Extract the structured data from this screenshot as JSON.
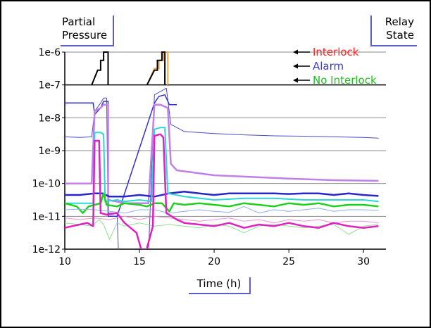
{
  "chart_data": {
    "type": "line",
    "xlabel": "Time (h)",
    "ylabel": "Partial Pressure",
    "secondary_label": "Relay State",
    "yscale": "log",
    "ylim": [
      1e-12,
      1e-06
    ],
    "xlim": [
      10,
      31.5
    ],
    "xticks": [
      "10",
      "15",
      "20",
      "25",
      "30"
    ],
    "xtick_values": [
      10,
      15,
      20,
      25,
      30
    ],
    "yticks": [
      "1e-12",
      "1e-11",
      "1e-10",
      "1e-9",
      "1e-8",
      "1e-7",
      "1e-6"
    ],
    "ytick_exponents": [
      -12,
      -11,
      -10,
      -9,
      -8,
      -7,
      -6
    ],
    "grid": "horizontal",
    "legend": [
      {
        "label": "Interlock",
        "color": "#ff2020",
        "level": 4
      },
      {
        "label": "Alarm",
        "color": "#4040d0",
        "level": 3
      },
      {
        "label": "No Interlock",
        "color": "#20c020",
        "level": 2
      }
    ],
    "relay_traces": [
      {
        "color": "#000000",
        "points": [
          [
            11.8,
            -7
          ],
          [
            12.2,
            -6.55
          ],
          [
            12.4,
            -6.55
          ],
          [
            12.4,
            -6.25
          ],
          [
            12.6,
            -6.25
          ],
          [
            12.6,
            -6
          ],
          [
            12.9,
            -6
          ],
          [
            12.9,
            -7
          ]
        ]
      },
      {
        "color": "#f0a850",
        "points": [
          [
            15.5,
            -7
          ],
          [
            16.0,
            -6.5
          ],
          [
            16.3,
            -6.5
          ],
          [
            16.3,
            -6.25
          ],
          [
            16.6,
            -6.25
          ],
          [
            16.6,
            -6
          ],
          [
            16.9,
            -6
          ],
          [
            16.9,
            -7
          ]
        ]
      },
      {
        "color": "#000000",
        "points": [
          [
            15.5,
            -7
          ],
          [
            16.0,
            -6.55
          ],
          [
            16.2,
            -6.55
          ],
          [
            16.2,
            -6.25
          ],
          [
            16.5,
            -6.25
          ],
          [
            16.5,
            -6
          ],
          [
            16.7,
            -6
          ],
          [
            16.7,
            -7
          ]
        ]
      }
    ],
    "series": [
      {
        "color": "#4a4ac8",
        "width": 1,
        "points": [
          [
            10,
            -8.58
          ],
          [
            11,
            -8.6
          ],
          [
            11.8,
            -8.58
          ],
          [
            12.0,
            -7.8
          ],
          [
            12.4,
            -7.55
          ],
          [
            12.6,
            -7.4
          ],
          [
            12.8,
            -7.4
          ],
          [
            12.9,
            -10.9
          ],
          [
            13.5,
            -10.9
          ],
          [
            13.6,
            -12.2
          ],
          [
            15.6,
            -12.2
          ],
          [
            16.0,
            -7.3
          ],
          [
            16.4,
            -7.2
          ],
          [
            16.8,
            -7.1
          ],
          [
            17.1,
            -8.2
          ],
          [
            18,
            -8.42
          ],
          [
            20,
            -8.48
          ],
          [
            22,
            -8.52
          ],
          [
            24,
            -8.55
          ],
          [
            26,
            -8.56
          ],
          [
            28,
            -8.58
          ],
          [
            30,
            -8.6
          ],
          [
            31,
            -8.62
          ]
        ]
      },
      {
        "color": "#3030d0",
        "width": 1.5,
        "points": [
          [
            10,
            -7.55
          ],
          [
            11,
            -7.55
          ],
          [
            11.9,
            -7.55
          ],
          [
            12.0,
            -7.9
          ],
          [
            12.4,
            -7.7
          ],
          [
            12.6,
            -7.5
          ],
          [
            12.9,
            -7.5
          ],
          [
            12.9,
            -11
          ],
          [
            13.5,
            -11
          ],
          [
            16.0,
            -7.55
          ],
          [
            16.3,
            -7.35
          ],
          [
            16.7,
            -7.3
          ],
          [
            17.0,
            -7.6
          ],
          [
            17.5,
            -7.6
          ]
        ]
      },
      {
        "color": "#c080e8",
        "width": 2.5,
        "points": [
          [
            10,
            -10
          ],
          [
            11,
            -10
          ],
          [
            11.8,
            -10
          ],
          [
            12.0,
            -7.8
          ],
          [
            12.4,
            -7.7
          ],
          [
            12.6,
            -7.6
          ],
          [
            12.9,
            -7.6
          ],
          [
            12.9,
            -10.5
          ],
          [
            14,
            -10.6
          ],
          [
            15.6,
            -10.6
          ],
          [
            16.0,
            -7.6
          ],
          [
            16.4,
            -7.6
          ],
          [
            16.9,
            -7.7
          ],
          [
            17.1,
            -9.4
          ],
          [
            17.5,
            -9.6
          ],
          [
            20,
            -9.75
          ],
          [
            25,
            -9.85
          ],
          [
            28,
            -9.9
          ],
          [
            31,
            -9.92
          ]
        ]
      },
      {
        "color": "#2828c8",
        "width": 2.5,
        "points": [
          [
            10,
            -10.35
          ],
          [
            11,
            -10.35
          ],
          [
            12,
            -10.3
          ],
          [
            12.5,
            -10.3
          ],
          [
            13,
            -10.4
          ],
          [
            14,
            -10.4
          ],
          [
            15,
            -10.35
          ],
          [
            16,
            -10.4
          ],
          [
            17,
            -10.3
          ],
          [
            18,
            -10.25
          ],
          [
            19,
            -10.3
          ],
          [
            20,
            -10.35
          ],
          [
            21,
            -10.3
          ],
          [
            22,
            -10.3
          ],
          [
            23,
            -10.3
          ],
          [
            24,
            -10.3
          ],
          [
            25,
            -10.32
          ],
          [
            26,
            -10.3
          ],
          [
            27,
            -10.3
          ],
          [
            28,
            -10.35
          ],
          [
            29,
            -10.3
          ],
          [
            30,
            -10.35
          ],
          [
            31,
            -10.38
          ]
        ]
      },
      {
        "color": "#28d8d8",
        "width": 2,
        "points": [
          [
            10,
            -10.6
          ],
          [
            11,
            -10.6
          ],
          [
            11.9,
            -10.6
          ],
          [
            12.0,
            -8.45
          ],
          [
            12.4,
            -8.45
          ],
          [
            12.6,
            -8.5
          ],
          [
            12.7,
            -10.55
          ],
          [
            13.5,
            -10.5
          ],
          [
            14,
            -10.55
          ],
          [
            15,
            -10.5
          ],
          [
            15.8,
            -10.55
          ],
          [
            16.0,
            -8.35
          ],
          [
            16.4,
            -8.3
          ],
          [
            16.7,
            -8.3
          ],
          [
            16.9,
            -10.3
          ],
          [
            18,
            -10.4
          ],
          [
            20,
            -10.5
          ],
          [
            22,
            -10.45
          ],
          [
            24,
            -10.45
          ],
          [
            26,
            -10.5
          ],
          [
            28,
            -10.5
          ],
          [
            30,
            -10.5
          ],
          [
            31,
            -10.55
          ]
        ]
      },
      {
        "color": "#20d020",
        "width": 2.5,
        "points": [
          [
            10,
            -10.6
          ],
          [
            10.8,
            -10.7
          ],
          [
            11.2,
            -10.9
          ],
          [
            11.6,
            -10.7
          ],
          [
            12,
            -10.65
          ],
          [
            12.4,
            -10.6
          ],
          [
            12.6,
            -10.3
          ],
          [
            12.8,
            -10.65
          ],
          [
            13.5,
            -10.7
          ],
          [
            14,
            -10.6
          ],
          [
            15,
            -10.65
          ],
          [
            15.5,
            -10.7
          ],
          [
            16,
            -10.6
          ],
          [
            16.5,
            -10.6
          ],
          [
            17,
            -10.85
          ],
          [
            17.3,
            -10.6
          ],
          [
            18,
            -10.65
          ],
          [
            19,
            -10.6
          ],
          [
            20,
            -10.65
          ],
          [
            21,
            -10.7
          ],
          [
            22,
            -10.6
          ],
          [
            23,
            -10.65
          ],
          [
            24,
            -10.7
          ],
          [
            25,
            -10.6
          ],
          [
            26,
            -10.65
          ],
          [
            27,
            -10.6
          ],
          [
            28,
            -10.7
          ],
          [
            29,
            -10.65
          ],
          [
            30,
            -10.65
          ],
          [
            31,
            -10.7
          ]
        ]
      },
      {
        "color": "#8ab0f0",
        "width": 1,
        "points": [
          [
            10,
            -10.8
          ],
          [
            11,
            -10.78
          ],
          [
            12,
            -10.8
          ],
          [
            13,
            -10.85
          ],
          [
            14,
            -10.9
          ],
          [
            15,
            -10.8
          ],
          [
            16,
            -10.8
          ],
          [
            17,
            -10.9
          ],
          [
            18,
            -10.85
          ],
          [
            19,
            -10.8
          ],
          [
            20,
            -10.85
          ],
          [
            21,
            -10.88
          ],
          [
            22,
            -10.7
          ],
          [
            23,
            -10.9
          ],
          [
            24,
            -10.8
          ],
          [
            25,
            -10.85
          ],
          [
            26,
            -10.8
          ],
          [
            27,
            -10.75
          ],
          [
            28,
            -10.85
          ],
          [
            29,
            -10.8
          ],
          [
            30,
            -10.8
          ],
          [
            31,
            -10.82
          ]
        ]
      },
      {
        "color": "#f090d8",
        "width": 1,
        "points": [
          [
            10,
            -11.05
          ],
          [
            11,
            -11.1
          ],
          [
            12,
            -11.05
          ],
          [
            13,
            -11.1
          ],
          [
            14,
            -11.0
          ],
          [
            15,
            -11.1
          ],
          [
            16,
            -11.0
          ],
          [
            17,
            -11.05
          ],
          [
            18,
            -11.1
          ],
          [
            19,
            -11.15
          ],
          [
            20,
            -11.1
          ],
          [
            21,
            -11.05
          ],
          [
            22,
            -11.15
          ],
          [
            23,
            -11.1
          ],
          [
            24,
            -11.2
          ],
          [
            25,
            -11.1
          ],
          [
            26,
            -11.15
          ],
          [
            27,
            -11.1
          ],
          [
            28,
            -11.2
          ],
          [
            29,
            -11.15
          ],
          [
            30,
            -11.15
          ],
          [
            31,
            -11.2
          ]
        ]
      },
      {
        "color": "#90e090",
        "width": 1,
        "points": [
          [
            10,
            -11.2
          ],
          [
            11,
            -11.25
          ],
          [
            11.8,
            -11.3
          ],
          [
            12.3,
            -11.1
          ],
          [
            12.6,
            -11.25
          ],
          [
            13.0,
            -11.7
          ],
          [
            13.5,
            -11.2
          ],
          [
            14,
            -11.3
          ],
          [
            15,
            -11.2
          ],
          [
            16,
            -11.3
          ],
          [
            17,
            -11.25
          ],
          [
            18,
            -11.3
          ],
          [
            19,
            -11.35
          ],
          [
            20,
            -11.25
          ],
          [
            21,
            -11.3
          ],
          [
            22,
            -11.5
          ],
          [
            23,
            -11.3
          ],
          [
            24,
            -11.25
          ],
          [
            25,
            -11.3
          ],
          [
            26,
            -11.35
          ],
          [
            27,
            -11.3
          ],
          [
            28,
            -11.25
          ],
          [
            29,
            -11.55
          ],
          [
            30,
            -11.3
          ],
          [
            31,
            -11.25
          ]
        ]
      },
      {
        "color": "#e020c0",
        "width": 2.5,
        "points": [
          [
            10,
            -11.35
          ],
          [
            10.5,
            -11.3
          ],
          [
            11,
            -11.25
          ],
          [
            11.5,
            -11.2
          ],
          [
            11.9,
            -11.3
          ],
          [
            12.0,
            -8.7
          ],
          [
            12.3,
            -8.7
          ],
          [
            12.4,
            -10.9
          ],
          [
            12.8,
            -10.95
          ],
          [
            13.5,
            -10.9
          ],
          [
            14,
            -11.2
          ],
          [
            14.8,
            -11.5
          ],
          [
            15.3,
            -12.3
          ],
          [
            15.9,
            -11.3
          ],
          [
            16.0,
            -8.55
          ],
          [
            16.4,
            -8.5
          ],
          [
            16.6,
            -8.6
          ],
          [
            16.8,
            -10.9
          ],
          [
            17.5,
            -11.1
          ],
          [
            18,
            -11.2
          ],
          [
            19,
            -11.25
          ],
          [
            20,
            -11.3
          ],
          [
            21,
            -11.2
          ],
          [
            22,
            -11.35
          ],
          [
            23,
            -11.25
          ],
          [
            24,
            -11.3
          ],
          [
            25,
            -11.2
          ],
          [
            26,
            -11.3
          ],
          [
            27,
            -11.35
          ],
          [
            28,
            -11.2
          ],
          [
            29,
            -11.3
          ],
          [
            30,
            -11.35
          ],
          [
            31,
            -11.3
          ]
        ]
      }
    ]
  }
}
